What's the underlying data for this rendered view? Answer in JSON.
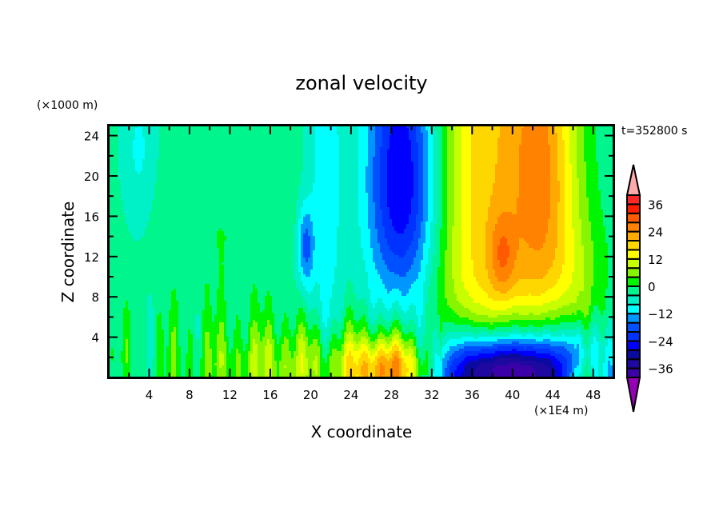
{
  "chart_data": {
    "type": "heatmap",
    "title": "zonal velocity",
    "xlabel": "X coordinate",
    "ylabel": "Z coordinate",
    "x_unit_label": "(×1E4 m)",
    "y_unit_label": "(×1000 m)",
    "time_label": "t=352800 s",
    "xlim": [
      0,
      50
    ],
    "ylim": [
      0,
      25
    ],
    "x_ticks": [
      4,
      8,
      12,
      16,
      20,
      24,
      28,
      32,
      36,
      40,
      44,
      48
    ],
    "x_tick_labels": [
      "4",
      "8",
      "12",
      "16",
      "20",
      "24",
      "28",
      "32",
      "36",
      "40",
      "44",
      "48"
    ],
    "y_ticks": [
      4,
      8,
      12,
      16,
      20,
      24
    ],
    "y_tick_labels": [
      "4",
      "8",
      "12",
      "16",
      "20",
      "24"
    ],
    "colorbar": {
      "levels": [
        -40,
        -36,
        -32,
        -28,
        -24,
        -20,
        -16,
        -12,
        -8,
        -4,
        0,
        4,
        8,
        12,
        16,
        20,
        24,
        28,
        32,
        36,
        40
      ],
      "tick_values": [
        36,
        24,
        12,
        0,
        -12,
        -24,
        -36
      ],
      "tick_labels": [
        "36",
        "24",
        "12",
        "0",
        "−12",
        "−24",
        "−36"
      ],
      "colors": [
        "#5a0aa0",
        "#3c00a8",
        "#1e08a0",
        "#0a0aa0",
        "#0000ff",
        "#0032ff",
        "#0050ff",
        "#0096ff",
        "#00ffff",
        "#00f0c8",
        "#00f58c",
        "#00f500",
        "#87f500",
        "#c8ff00",
        "#ffff00",
        "#ffd700",
        "#ffaa00",
        "#ff8200",
        "#ff5a00",
        "#ff1e00",
        "#ff2828"
      ],
      "over_color": "#ffaaaa",
      "under_color": "#9600b4",
      "extend": "both"
    },
    "field_description_points": [
      {
        "x": 29,
        "z": 18,
        "value": -26
      },
      {
        "x": 43,
        "z": 20,
        "value": 26
      },
      {
        "x": 38,
        "z": 16,
        "value": 14
      },
      {
        "x": 43,
        "z": 0.5,
        "value": -38
      },
      {
        "x": 29,
        "z": 0.5,
        "value": 22
      },
      {
        "x": 10,
        "z": 18,
        "value": -2
      }
    ]
  }
}
